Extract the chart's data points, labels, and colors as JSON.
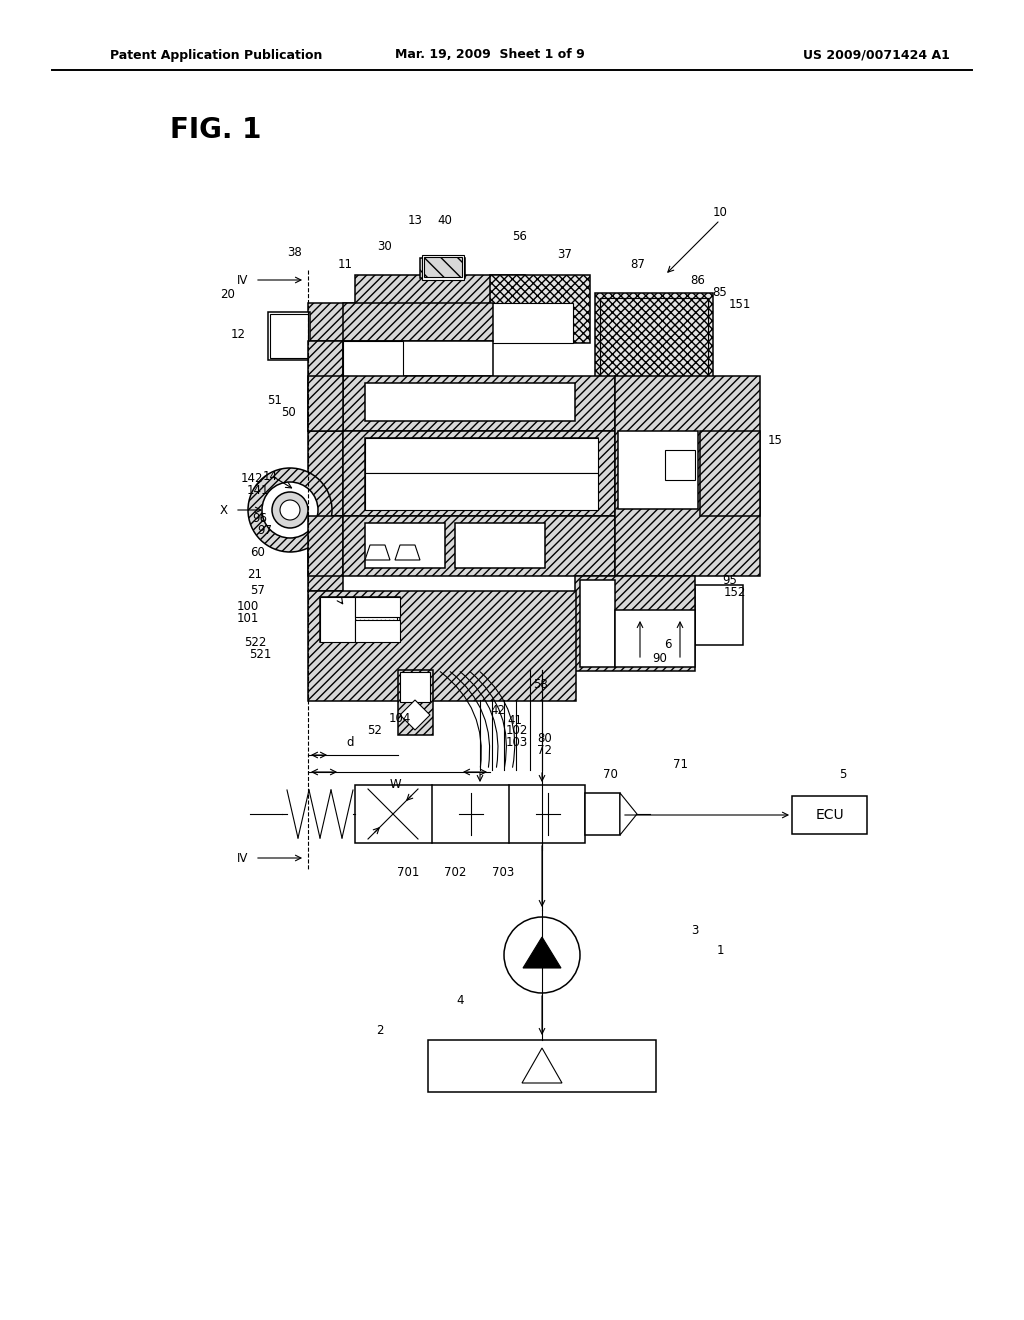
{
  "background": "#ffffff",
  "line_color": "#000000",
  "header_left": "Patent Application Publication",
  "header_center": "Mar. 19, 2009  Sheet 1 of 9",
  "header_right": "US 2009/0071424 A1",
  "fig_label": "FIG. 1",
  "hg": "#d8d8d8",
  "chg": "#e4e4e4",
  "white": "#ffffff"
}
